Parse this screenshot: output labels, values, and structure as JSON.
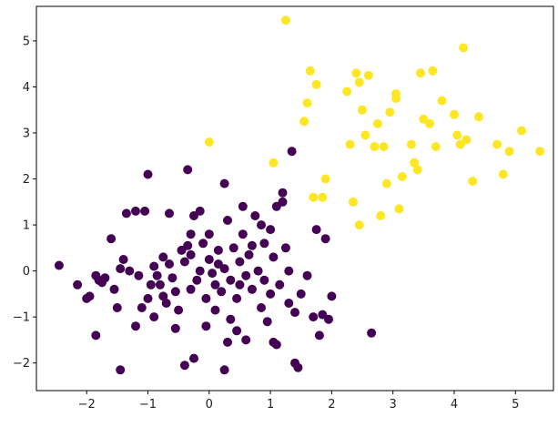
{
  "chart_data": {
    "type": "scatter",
    "title": "",
    "xlabel": "",
    "ylabel": "",
    "xlim": [
      -2.82,
      5.62
    ],
    "ylim": [
      -2.6,
      5.75
    ],
    "x_ticks": [
      -2,
      -1,
      0,
      1,
      2,
      3,
      4,
      5
    ],
    "x_tick_labels": [
      "−2",
      "−1",
      "0",
      "1",
      "2",
      "3",
      "4",
      "5"
    ],
    "y_ticks": [
      -2,
      -1,
      0,
      1,
      2,
      3,
      4,
      5
    ],
    "y_tick_labels": [
      "−2",
      "−1",
      "0",
      "1",
      "2",
      "3",
      "4",
      "5"
    ],
    "grid": false,
    "legend": "none",
    "series": [
      {
        "color": "#440154",
        "points": [
          [
            -2.45,
            0.12
          ],
          [
            -2.15,
            -0.3
          ],
          [
            -1.95,
            -0.55
          ],
          [
            -1.85,
            -0.1
          ],
          [
            -1.8,
            -0.2
          ],
          [
            -1.75,
            -0.25
          ],
          [
            -1.7,
            -0.15
          ],
          [
            -1.6,
            0.7
          ],
          [
            -1.55,
            -0.4
          ],
          [
            -1.5,
            -0.8
          ],
          [
            -1.45,
            0.05
          ],
          [
            -1.4,
            0.25
          ],
          [
            -1.35,
            1.25
          ],
          [
            -1.3,
            0.0
          ],
          [
            -1.2,
            1.3
          ],
          [
            -1.15,
            -0.1
          ],
          [
            -1.05,
            1.3
          ],
          [
            -1.0,
            2.1
          ],
          [
            -1.0,
            -0.6
          ],
          [
            -0.95,
            -0.3
          ],
          [
            -0.9,
            0.1
          ],
          [
            -0.85,
            -0.1
          ],
          [
            -0.8,
            -0.3
          ],
          [
            -0.75,
            0.3
          ],
          [
            -0.7,
            -0.7
          ],
          [
            -0.65,
            0.15
          ],
          [
            -0.6,
            -0.15
          ],
          [
            -0.55,
            -0.45
          ],
          [
            -0.5,
            -0.85
          ],
          [
            -0.45,
            0.45
          ],
          [
            -0.4,
            0.2
          ],
          [
            -0.35,
            0.55
          ],
          [
            -0.3,
            0.8
          ],
          [
            -0.3,
            -0.4
          ],
          [
            -0.25,
            1.2
          ],
          [
            -0.2,
            -0.2
          ],
          [
            -0.15,
            0.0
          ],
          [
            -0.1,
            0.6
          ],
          [
            -0.05,
            -0.6
          ],
          [
            0.0,
            0.8
          ],
          [
            0.0,
            0.25
          ],
          [
            0.05,
            -0.05
          ],
          [
            0.1,
            -0.3
          ],
          [
            0.15,
            0.45
          ],
          [
            0.2,
            -0.45
          ],
          [
            0.25,
            0.05
          ],
          [
            0.3,
            1.1
          ],
          [
            0.35,
            -0.2
          ],
          [
            0.4,
            0.5
          ],
          [
            0.45,
            -0.6
          ],
          [
            0.5,
            0.2
          ],
          [
            0.5,
            -0.3
          ],
          [
            0.55,
            0.8
          ],
          [
            0.6,
            -0.1
          ],
          [
            0.6,
            -1.5
          ],
          [
            0.65,
            0.35
          ],
          [
            0.7,
            -0.4
          ],
          [
            0.75,
            1.2
          ],
          [
            0.8,
            0.0
          ],
          [
            0.85,
            -0.8
          ],
          [
            0.9,
            0.6
          ],
          [
            0.9,
            -0.2
          ],
          [
            0.95,
            -1.1
          ],
          [
            1.0,
            0.9
          ],
          [
            1.0,
            -0.5
          ],
          [
            1.05,
            -1.55
          ],
          [
            1.1,
            1.4
          ],
          [
            1.15,
            -0.3
          ],
          [
            1.2,
            1.7
          ],
          [
            1.2,
            1.5
          ],
          [
            1.25,
            0.5
          ],
          [
            1.3,
            0.0
          ],
          [
            1.3,
            -0.7
          ],
          [
            1.35,
            2.6
          ],
          [
            1.4,
            -0.9
          ],
          [
            1.4,
            -2.0
          ],
          [
            1.45,
            -2.1
          ],
          [
            1.5,
            -0.5
          ],
          [
            1.6,
            -0.1
          ],
          [
            1.7,
            -1.0
          ],
          [
            1.75,
            0.9
          ],
          [
            1.8,
            -1.4
          ],
          [
            1.85,
            -0.95
          ],
          [
            1.9,
            0.7
          ],
          [
            1.95,
            -1.05
          ],
          [
            2.0,
            -0.55
          ],
          [
            2.65,
            -1.35
          ],
          [
            -0.35,
            2.2
          ],
          [
            0.25,
            1.9
          ],
          [
            -1.45,
            -2.15
          ],
          [
            -0.4,
            -2.05
          ],
          [
            -0.25,
            -1.9
          ],
          [
            0.25,
            -2.15
          ],
          [
            0.3,
            -1.55
          ],
          [
            0.45,
            -1.3
          ],
          [
            -0.05,
            -1.2
          ],
          [
            -0.55,
            -1.25
          ],
          [
            -0.9,
            -1.0
          ],
          [
            -1.2,
            -1.2
          ],
          [
            -1.85,
            -1.4
          ],
          [
            -2.0,
            -0.6
          ],
          [
            -1.1,
            -0.8
          ],
          [
            -0.15,
            1.3
          ],
          [
            0.55,
            1.4
          ],
          [
            0.85,
            1.0
          ],
          [
            1.05,
            0.3
          ],
          [
            -0.3,
            0.35
          ],
          [
            0.15,
            0.15
          ],
          [
            0.7,
            0.55
          ],
          [
            -0.65,
            1.25
          ],
          [
            0.1,
            -0.85
          ],
          [
            -0.75,
            -0.55
          ],
          [
            0.35,
            -1.05
          ],
          [
            1.1,
            -1.6
          ]
        ]
      },
      {
        "color": "#fde725",
        "points": [
          [
            0.0,
            2.8
          ],
          [
            1.05,
            2.35
          ],
          [
            1.25,
            5.45
          ],
          [
            1.55,
            3.25
          ],
          [
            1.6,
            3.65
          ],
          [
            1.65,
            4.35
          ],
          [
            1.75,
            4.05
          ],
          [
            1.7,
            1.6
          ],
          [
            1.85,
            1.6
          ],
          [
            1.9,
            2.0
          ],
          [
            2.25,
            3.9
          ],
          [
            2.3,
            2.75
          ],
          [
            2.35,
            1.5
          ],
          [
            2.4,
            4.3
          ],
          [
            2.45,
            4.1
          ],
          [
            2.45,
            1.0
          ],
          [
            2.5,
            3.5
          ],
          [
            2.55,
            2.95
          ],
          [
            2.6,
            4.25
          ],
          [
            2.7,
            2.7
          ],
          [
            2.75,
            3.2
          ],
          [
            2.8,
            1.2
          ],
          [
            2.85,
            2.7
          ],
          [
            2.9,
            1.9
          ],
          [
            2.95,
            3.45
          ],
          [
            3.05,
            3.85
          ],
          [
            3.05,
            3.75
          ],
          [
            3.1,
            1.35
          ],
          [
            3.15,
            2.05
          ],
          [
            3.3,
            2.75
          ],
          [
            3.35,
            2.35
          ],
          [
            3.4,
            2.2
          ],
          [
            3.45,
            4.3
          ],
          [
            3.5,
            3.3
          ],
          [
            3.6,
            3.2
          ],
          [
            3.65,
            4.35
          ],
          [
            3.7,
            2.7
          ],
          [
            3.8,
            3.7
          ],
          [
            4.0,
            3.4
          ],
          [
            4.05,
            2.95
          ],
          [
            4.1,
            2.75
          ],
          [
            4.15,
            4.85
          ],
          [
            4.2,
            2.85
          ],
          [
            4.3,
            1.95
          ],
          [
            4.4,
            3.35
          ],
          [
            4.7,
            2.75
          ],
          [
            4.8,
            2.1
          ],
          [
            4.9,
            2.6
          ],
          [
            5.1,
            3.05
          ],
          [
            5.4,
            2.6
          ]
        ]
      }
    ]
  }
}
